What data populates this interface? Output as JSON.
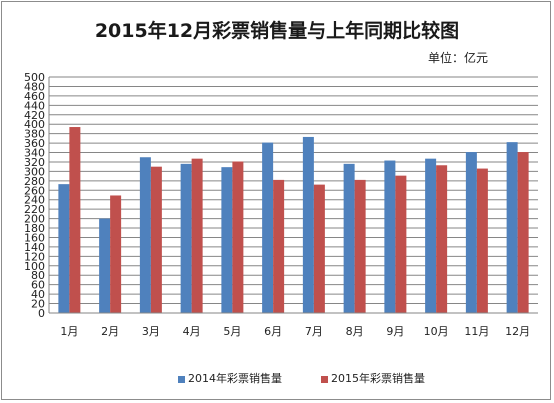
{
  "chart_data": {
    "type": "bar",
    "title": "2015年12月彩票销售量与上年同期比较图",
    "unit_label": "单位：亿元",
    "categories": [
      "1月",
      "2月",
      "3月",
      "4月",
      "5月",
      "6月",
      "7月",
      "8月",
      "9月",
      "10月",
      "11月",
      "12月"
    ],
    "series": [
      {
        "name": "2014年彩票销售量",
        "color": "#4f81bd",
        "values": [
          273,
          200,
          330,
          316,
          309,
          361,
          373,
          316,
          323,
          327,
          341,
          362
        ]
      },
      {
        "name": "2015年彩票销售量",
        "color": "#c0504d",
        "values": [
          394,
          249,
          310,
          327,
          321,
          282,
          272,
          282,
          291,
          313,
          306,
          341
        ]
      }
    ],
    "ylim": [
      0,
      500
    ],
    "ytick_step": 20,
    "grid": true,
    "legend_position": "bottom"
  }
}
